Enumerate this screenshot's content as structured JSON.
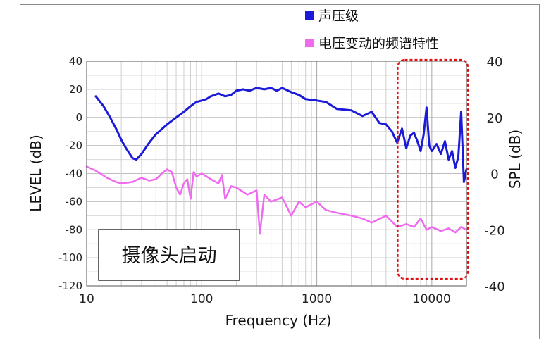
{
  "chart_data": {
    "type": "line",
    "title": "",
    "xlabel": "Frequency (Hz)",
    "ylabel_left": "LEVEL (dB)",
    "ylabel_right": "SPL (dB)",
    "x_scale": "log",
    "xlim": [
      10,
      20000
    ],
    "ylim_left": [
      -120,
      40
    ],
    "ylim_right": [
      -40,
      40
    ],
    "x_ticks": [
      "10",
      "100",
      "1000",
      "10000"
    ],
    "y_ticks_left": [
      "40",
      "20",
      "0",
      "-20",
      "-40",
      "-60",
      "-80",
      "-100",
      "-120"
    ],
    "y_ticks_right": [
      "40",
      "20",
      "0",
      "-20",
      "-40"
    ],
    "grid": true,
    "legend_position": "top-right",
    "annotation": "摄像头启动",
    "highlight_region": {
      "x_from": 5200,
      "x_to": 20000,
      "style": "red dashed"
    },
    "series": [
      {
        "name": "声压级",
        "color": "#1a1ad8",
        "axis": "right",
        "x": [
          12,
          14,
          16,
          18,
          20,
          22,
          25,
          27,
          30,
          35,
          40,
          50,
          60,
          70,
          80,
          90,
          100,
          110,
          120,
          140,
          160,
          180,
          200,
          230,
          260,
          300,
          350,
          400,
          450,
          500,
          600,
          700,
          800,
          1000,
          1200,
          1500,
          2000,
          2500,
          3000,
          3500,
          4000,
          4500,
          5000,
          5500,
          6000,
          6500,
          7000,
          7500,
          8000,
          8500,
          9000,
          9500,
          10000,
          11000,
          12000,
          13000,
          14000,
          15000,
          16000,
          17000,
          18000,
          19000,
          20000
        ],
        "y": [
          27.5,
          24,
          20,
          16,
          12,
          9,
          5.5,
          5,
          7,
          11,
          14,
          17.5,
          20,
          22,
          24,
          25.5,
          26,
          26.5,
          27.5,
          28.5,
          27.5,
          28,
          29.5,
          30,
          29.5,
          30.5,
          30,
          30.5,
          29.5,
          30.5,
          29,
          28,
          26.5,
          26,
          25.5,
          23,
          22.5,
          20.5,
          22,
          18,
          17.5,
          15,
          11,
          16,
          9,
          13.5,
          14.5,
          11.5,
          8,
          14,
          23.5,
          10,
          8,
          10.5,
          7,
          11.5,
          5,
          8,
          2,
          6,
          22,
          -3,
          1.5
        ]
      },
      {
        "name": "电压变动的频谱特性",
        "color": "#f06af0",
        "axis": "left",
        "x": [
          10,
          12,
          15,
          18,
          20,
          25,
          28,
          30,
          35,
          40,
          45,
          50,
          55,
          60,
          65,
          70,
          75,
          80,
          85,
          90,
          100,
          110,
          120,
          140,
          150,
          160,
          180,
          200,
          250,
          300,
          320,
          350,
          400,
          500,
          600,
          700,
          800,
          1000,
          1200,
          1500,
          2000,
          2500,
          3000,
          4000,
          5000,
          6000,
          7000,
          8000,
          9000,
          10000,
          12000,
          14000,
          16000,
          18000,
          20000
        ],
        "y": [
          -35,
          -38,
          -43,
          -46,
          -47,
          -46,
          -44,
          -43,
          -45,
          -44,
          -40,
          -37,
          -39,
          -50,
          -55,
          -47,
          -44,
          -58,
          -39,
          -42,
          -40,
          -42,
          -44,
          -47,
          -41,
          -58,
          -49,
          -50,
          -55,
          -52,
          -83,
          -55,
          -60,
          -57,
          -70,
          -60,
          -64,
          -60,
          -66,
          -68,
          -70,
          -72,
          -75,
          -70,
          -78,
          -76,
          -78,
          -72,
          -80,
          -78,
          -81,
          -79,
          -82,
          -78,
          -80
        ]
      }
    ]
  }
}
